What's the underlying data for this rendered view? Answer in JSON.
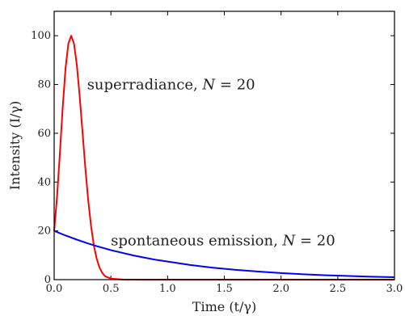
{
  "chart_data": {
    "type": "line",
    "title": "",
    "xlabel": "Time (t/γ)",
    "ylabel": "Intensity (I/γ)",
    "xlim": [
      0.0,
      3.0
    ],
    "ylim": [
      0,
      110
    ],
    "x_ticks": [
      "0.0",
      "0.5",
      "1.0",
      "1.5",
      "2.0",
      "2.5",
      "3.0"
    ],
    "y_ticks": [
      "0",
      "20",
      "40",
      "60",
      "80",
      "100"
    ],
    "grid": false,
    "legend": "none",
    "series": [
      {
        "color": "#ff0000",
        "x": [
          0.0,
          0.025,
          0.05,
          0.075,
          0.1,
          0.125,
          0.15,
          0.175,
          0.2,
          0.225,
          0.25,
          0.275,
          0.3,
          0.325,
          0.35,
          0.375,
          0.4,
          0.425,
          0.45,
          0.5,
          0.6,
          0.8,
          1.0,
          1.5,
          2.0,
          2.5,
          3.0
        ],
        "y": [
          20,
          33.7,
          51.5,
          70.4,
          86.5,
          96.7,
          100.0,
          96.7,
          87.9,
          75.1,
          60.4,
          45.7,
          32.6,
          22.0,
          14.0,
          8.5,
          4.9,
          2.7,
          1.4,
          0.4,
          0.03,
          0,
          0,
          0,
          0,
          0,
          0
        ]
      },
      {
        "color": "#0000ff",
        "x": [
          0.0,
          0.1,
          0.2,
          0.3,
          0.4,
          0.5,
          0.6,
          0.7,
          0.8,
          0.9,
          1.0,
          1.2,
          1.4,
          1.6,
          1.8,
          2.0,
          2.2,
          2.4,
          2.6,
          2.8,
          3.0
        ],
        "y": [
          20,
          18.1,
          16.4,
          14.8,
          13.4,
          12.1,
          11.0,
          9.9,
          9.0,
          8.1,
          7.4,
          6.0,
          4.9,
          4.0,
          3.3,
          2.7,
          2.2,
          1.8,
          1.5,
          1.2,
          1.0
        ]
      }
    ],
    "annotations": [
      {
        "prefix": "superradiance, ",
        "symbol": "N",
        "suffix": " = 20",
        "x": 0.29,
        "y": 80
      },
      {
        "prefix": "spontaneous emission, ",
        "symbol": "N",
        "suffix": " = 20",
        "x": 0.5,
        "y": 16
      }
    ],
    "colors": {
      "axis": "#000000",
      "text": "#222222"
    }
  }
}
